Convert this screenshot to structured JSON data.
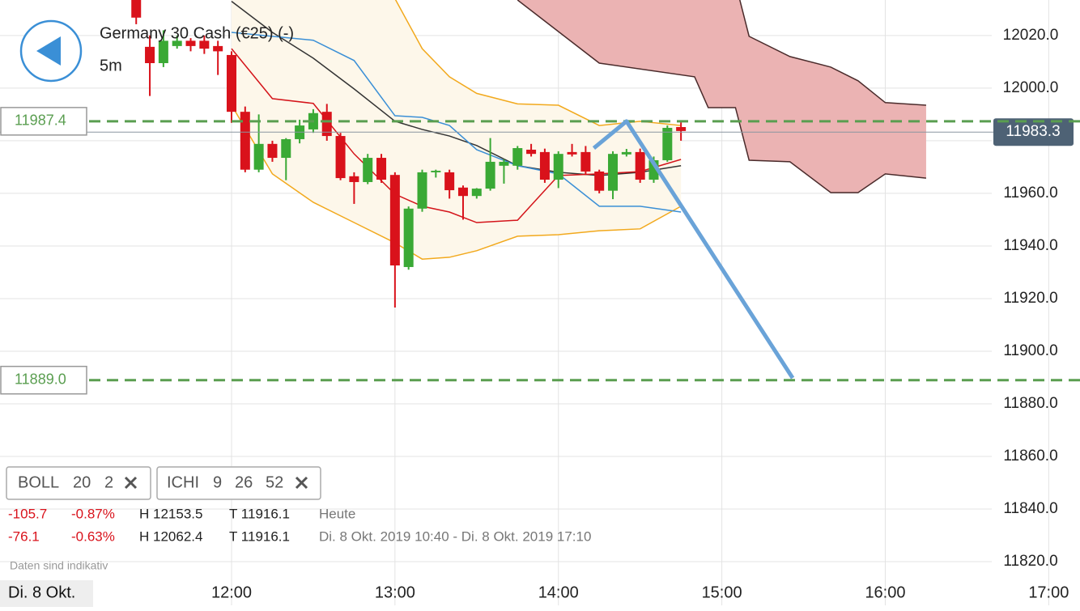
{
  "header": {
    "title": "Germany 30 Cash (€25) (-)",
    "timeframe": "5m"
  },
  "chart_data": {
    "type": "candlestick",
    "x": [
      "11:25",
      "11:30",
      "11:35",
      "11:40",
      "11:45",
      "11:50",
      "11:55",
      "12:00",
      "12:05",
      "12:10",
      "12:15",
      "12:20",
      "12:25",
      "12:30",
      "12:35",
      "12:40",
      "12:45",
      "12:50",
      "12:55",
      "13:00",
      "13:05",
      "13:10",
      "13:15",
      "13:20",
      "13:25",
      "13:30",
      "13:35",
      "13:40",
      "13:45",
      "13:50",
      "13:55",
      "14:00",
      "14:05",
      "14:10",
      "14:15",
      "14:20",
      "14:25",
      "14:30",
      "14:35",
      "14:40",
      "14:45"
    ],
    "open": [
      12036,
      12015.7,
      12009.5,
      12016,
      12018,
      12018,
      12016,
      12012.6,
      11991,
      11969,
      11978.8,
      11973.5,
      11980.6,
      11984.3,
      11991,
      11981.8,
      11966.5,
      11964.3,
      11973.5,
      11967,
      11932,
      11954.2,
      11968,
      11968,
      11962.2,
      11959,
      11961.8,
      11970.5,
      11970.5,
      11976.6,
      11975.7,
      11965.2,
      11975.7,
      11975.7,
      11968.3,
      11961,
      11974.8,
      11975.7,
      11965.2,
      11972.6,
      11985.2
    ],
    "high": [
      12038,
      12020,
      12022,
      12020,
      12019,
      12020,
      12018,
      12014,
      11993,
      11990,
      11980,
      11981,
      11988,
      11992,
      11994,
      11983,
      11968,
      11975,
      11975,
      11968,
      11955,
      11969,
      11969,
      11969,
      11963,
      11962,
      11981,
      11973,
      11978,
      11978.8,
      11977,
      11976,
      11978.8,
      11978,
      11969,
      11976,
      11976.9,
      11977,
      11974,
      11985.8,
      11987
    ],
    "low": [
      12024.3,
      11997,
      12008,
      12015,
      12014,
      12013,
      12005,
      11986.8,
      11968,
      11968,
      11972,
      11965,
      11979,
      11983,
      11980,
      11965,
      11956,
      11963.5,
      11964,
      11916.6,
      11931,
      11953,
      11966,
      11958,
      11950,
      11958,
      11961,
      11963.7,
      11969,
      11974,
      11964,
      11962,
      11974,
      11967,
      11960,
      11957.8,
      11974,
      11964,
      11964,
      11972,
      11980
    ],
    "close": [
      12026.8,
      12009.5,
      12018,
      12018,
      12016,
      12015,
      12014,
      11991,
      11969,
      11978.8,
      11973.5,
      11980.6,
      11985.8,
      11990.5,
      11981.8,
      11965.8,
      11964.3,
      11973.5,
      11965.2,
      11932.6,
      11954.2,
      11968,
      11968.6,
      11961.2,
      11959,
      11961.8,
      11972,
      11972,
      11977.2,
      11975,
      11965.2,
      11975,
      11974.8,
      11968.3,
      11961,
      11975,
      11975.7,
      11965.2,
      11972.6,
      11984.9,
      11983.7
    ],
    "up_color": "#3aa935",
    "down_color": "#d9121b",
    "xlim": [
      "10:35",
      "17:10"
    ],
    "xticks": [
      "12:00",
      "13:00",
      "14:00",
      "15:00",
      "16:00",
      "17:00"
    ],
    "ylim": [
      11803.4,
      12033.5
    ],
    "yticks": [
      {
        "value": 11820,
        "label": "11820.0"
      },
      {
        "value": 11840,
        "label": "11840.0"
      },
      {
        "value": 11860,
        "label": "11860.0"
      },
      {
        "value": 11880,
        "label": "11880.0"
      },
      {
        "value": 11900,
        "label": "11900.0"
      },
      {
        "value": 11920,
        "label": "11920.0"
      },
      {
        "value": 11940,
        "label": "11940.0"
      },
      {
        "value": 11960,
        "label": "11960.0"
      },
      {
        "value": 11980,
        "label": "11980.0"
      },
      {
        "value": 12000,
        "label": "12000.0"
      },
      {
        "value": 12020,
        "label": "12020.0"
      }
    ],
    "grid": true,
    "bands": [
      {
        "color": "#f2a91d",
        "fill": "#fdf7ea",
        "x": [
          "12:00",
          "12:15",
          "12:30",
          "12:45",
          "13:00",
          "13:10",
          "13:20",
          "13:30",
          "13:45",
          "14:00",
          "14:15",
          "14:30",
          "14:45"
        ],
        "upper": [
          12040,
          12040,
          12040,
          12040,
          12034,
          12015,
          12004.3,
          11998,
          11994,
          11993.5,
          11985.8,
          11987.4,
          11985.8
        ],
        "lower": [
          11993.5,
          11967.4,
          11956.6,
          11948.9,
          11941.2,
          11935,
          11935.7,
          11938.2,
          11943.7,
          11944.3,
          11945.8,
          11946.5,
          11955.1
        ]
      },
      {
        "color": "#4a2b2b",
        "fill": "#ebb3b3",
        "x": [
          "13:45",
          "14:15",
          "14:50",
          "14:55",
          "15:05",
          "15:10",
          "15:25",
          "15:40",
          "15:50",
          "16:00",
          "16:15"
        ],
        "upper": [
          12040,
          12040,
          12040,
          12040,
          12040,
          12019.7,
          12012,
          12008,
          12002.8,
          11994.5,
          11993.5
        ],
        "lower": [
          12033.5,
          12009.5,
          12004.3,
          11992.6,
          11992.6,
          11972.6,
          11972,
          11960.3,
          11960.3,
          11967.4,
          11965.8
        ]
      }
    ],
    "lines": [
      {
        "color": "#333333",
        "x": [
          "12:00",
          "12:15",
          "12:30",
          "12:45",
          "13:00",
          "13:10",
          "13:20",
          "13:30",
          "13:45",
          "14:00",
          "14:15",
          "14:30",
          "14:45"
        ],
        "values": [
          12033,
          12021.2,
          12011.4,
          11999.7,
          11987.4,
          11984.3,
          11981.8,
          11978.2,
          11970.5,
          11968,
          11966.8,
          11968,
          11970.5
        ]
      },
      {
        "color": "#d4141a",
        "x": [
          "12:00",
          "12:15",
          "12:30",
          "12:45",
          "13:00",
          "13:10",
          "13:20",
          "13:30",
          "13:45",
          "14:00",
          "14:15",
          "14:30",
          "14:45"
        ],
        "values": [
          12015,
          11996,
          11994.2,
          11975,
          11959.7,
          11955.1,
          11952.9,
          11948.9,
          11949.8,
          11966.8,
          11967.4,
          11968.3,
          11972.9
        ]
      },
      {
        "color": "#3a8fd6",
        "x": [
          "12:00",
          "12:15",
          "12:30",
          "12:45",
          "13:00",
          "13:10",
          "13:20",
          "13:30",
          "13:45",
          "14:00",
          "14:15",
          "14:30",
          "14:45"
        ],
        "values": [
          12021.2,
          12019.7,
          12018.2,
          12010.5,
          11989.5,
          11988.9,
          11985.8,
          11976.6,
          11970.5,
          11967.4,
          11955.1,
          11955.1,
          11952.9
        ]
      }
    ],
    "levels": [
      11987.4,
      {
        "value": 11889,
        "label": "11889.0"
      }
    ],
    "level_color": "#5a9e50",
    "current_price": 11983.3,
    "drawing": {
      "color": "#6aa3d8",
      "x": [
        "14:13",
        "14:25",
        "15:26"
      ],
      "values": [
        11977.2,
        11987.4,
        11889.8
      ]
    }
  },
  "indicators": [
    {
      "name": "BOLL",
      "params": [
        "20",
        "2"
      ]
    },
    {
      "name": "ICHI",
      "params": [
        "9",
        "26",
        "52"
      ]
    }
  ],
  "stats": {
    "rows": [
      [
        "-105.7",
        "-0.87%",
        "H 12153.5",
        "T 11916.1",
        "Heute"
      ],
      [
        "-76.1",
        "-0.63%",
        "H 12062.4",
        "T 11916.1",
        "Di. 8 Okt. 2019 10:40 - Di. 8 Okt. 2019 17:10"
      ]
    ]
  },
  "note": "Daten sind indikativ",
  "date": "Di. 8 Okt."
}
